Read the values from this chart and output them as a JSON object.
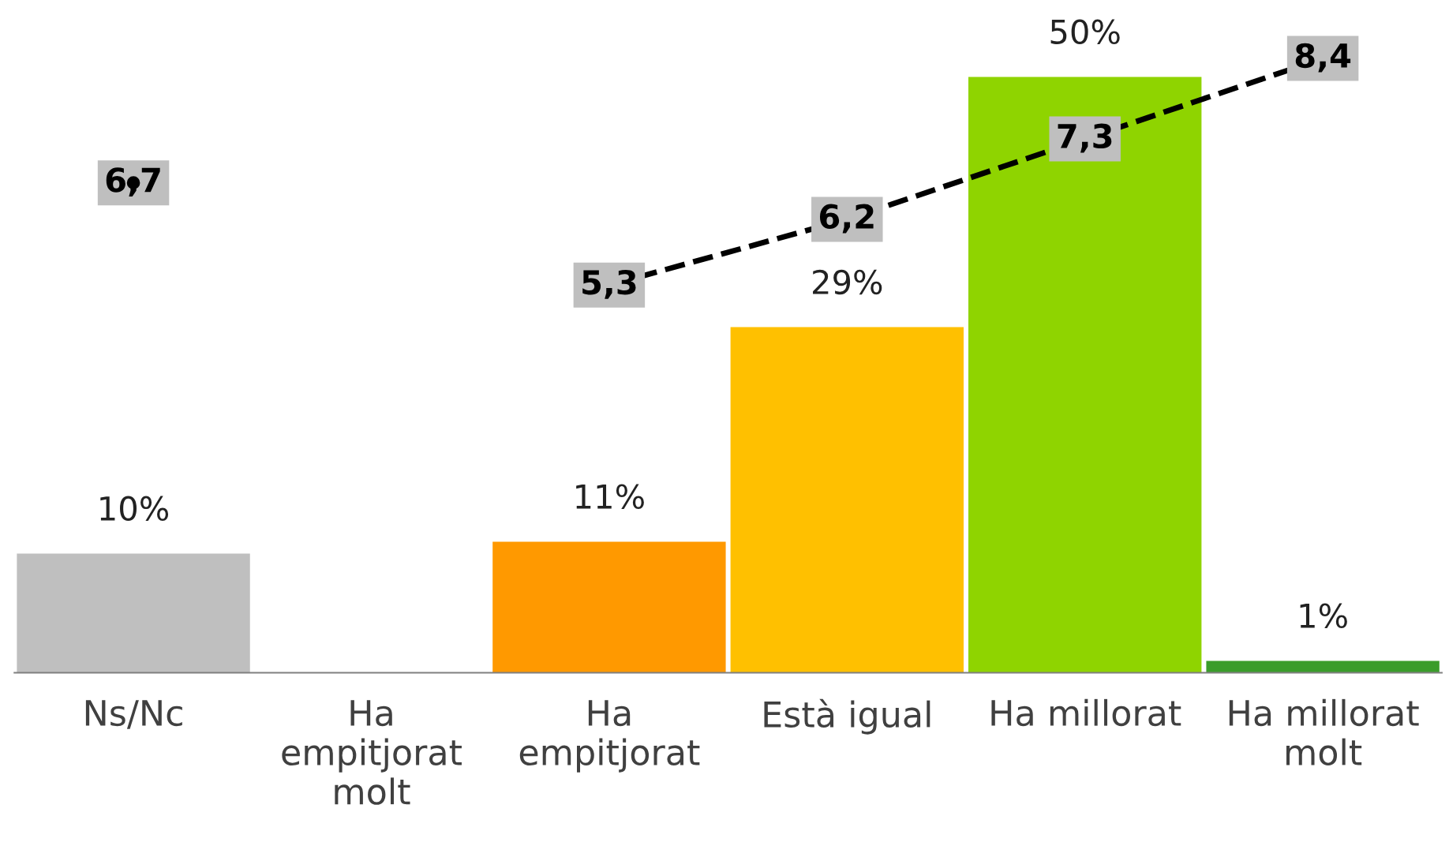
{
  "chart_data": {
    "type": "bar",
    "categories": [
      "Ns/Nc",
      "Ha\nempitjorat\nmolt",
      "Ha\nempitjorat",
      "Està igual",
      "Ha millorat",
      "Ha millorat\nmolt"
    ],
    "series": [
      {
        "type": "bar",
        "values": [
          10,
          null,
          11,
          29,
          50,
          1
        ],
        "colors": [
          "#bfbfbf",
          "#bfbfbf",
          "#ff9900",
          "#ffc000",
          "#8fd400",
          "#3a9c2a"
        ],
        "value_labels": [
          "10%",
          null,
          "11%",
          "29%",
          "50%",
          "1%"
        ]
      },
      {
        "type": "line",
        "axis": "y2",
        "color": "#000000",
        "values": [
          6.7,
          null,
          5.3,
          6.2,
          7.3,
          8.4
        ],
        "value_labels": [
          "6,7",
          null,
          "5,3",
          "6,2",
          "7,3",
          "8,4"
        ]
      }
    ],
    "tick_labels": "x",
    "grid": false,
    "legend": false,
    "line_style": "dashed"
  }
}
